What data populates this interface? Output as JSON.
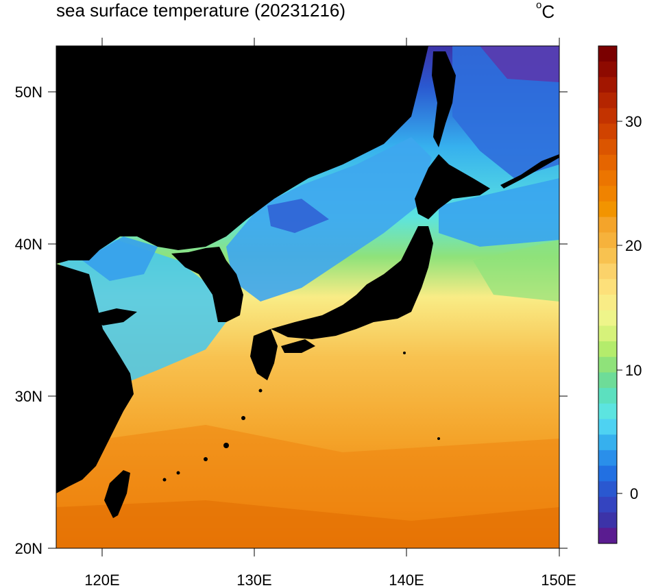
{
  "title": "sea surface temperature (20231216)",
  "unit": {
    "degree": "o",
    "symbol": "C"
  },
  "map": {
    "lon_ticks": [
      "120E",
      "130E",
      "140E",
      "150E"
    ],
    "lat_ticks": [
      "50N",
      "40N",
      "30N",
      "20N"
    ],
    "land_color": "#000000",
    "region": "Northwest Pacific, Japan Sea, East China Sea"
  },
  "colorbar": {
    "tick_labels": [
      "30",
      "20",
      "10",
      "0"
    ],
    "levels": 32,
    "colors": [
      "#7a0000",
      "#8e0a00",
      "#a21600",
      "#b42500",
      "#c33300",
      "#d04300",
      "#db5500",
      "#e56500",
      "#ec7500",
      "#f08300",
      "#f29400",
      "#f4a42a",
      "#f6b23c",
      "#f8c250",
      "#fbd26a",
      "#fde07a",
      "#f9ec86",
      "#eef58a",
      "#d6f27a",
      "#b4ec6c",
      "#8fe27a",
      "#6edc98",
      "#5ce0bf",
      "#5ce4e0",
      "#4ed2f2",
      "#36b0ee",
      "#2a8fea",
      "#2270e2",
      "#2a58d0",
      "#3444c0",
      "#3c33a8",
      "#5a1c90"
    ]
  }
}
